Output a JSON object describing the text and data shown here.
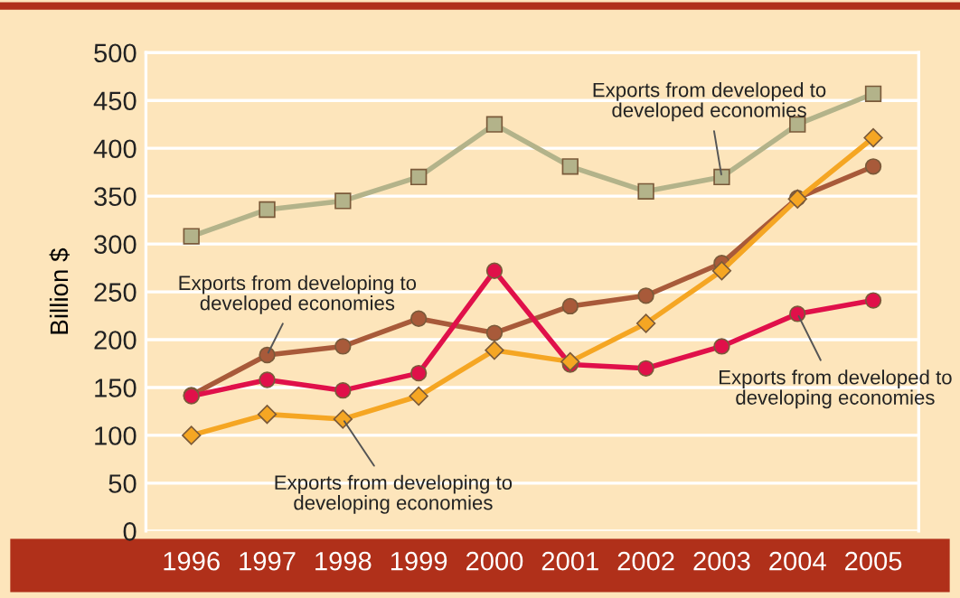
{
  "chart_data": {
    "type": "line",
    "ylabel": "Billion $",
    "categories": [
      "1996",
      "1997",
      "1998",
      "1999",
      "2000",
      "2001",
      "2002",
      "2003",
      "2004",
      "2005"
    ],
    "series": [
      {
        "color": "#b3b38a",
        "marker": "square",
        "values": [
          308,
          336,
          345,
          370,
          425,
          381,
          355,
          370,
          425,
          457
        ]
      },
      {
        "color": "#a85a3a",
        "marker": "circle",
        "values": [
          142,
          184,
          193,
          222,
          207,
          235,
          246,
          280,
          348,
          381
        ]
      },
      {
        "color": "#e0104a",
        "marker": "circle",
        "values": [
          141,
          158,
          147,
          165,
          272,
          174,
          170,
          193,
          227,
          241
        ]
      },
      {
        "color": "#f5a623",
        "marker": "diamond",
        "values": [
          100,
          122,
          117,
          141,
          189,
          177,
          217,
          272,
          347,
          411
        ]
      }
    ],
    "annotations": [
      {
        "text": "Exports from developed to\ndeveloped economies",
        "x": "2003",
        "y": 370
      },
      {
        "text": "Exports from developing to\ndeveloped economies",
        "x": "1997",
        "y": 184
      },
      {
        "text": "Exports from developed to\ndeveloping economies",
        "x": "2004",
        "y": 227
      },
      {
        "text": "Exports from developing to\ndeveloping economies",
        "x": "1998",
        "y": 117
      }
    ],
    "ylim": [
      0,
      500
    ],
    "yticks": [
      0,
      50,
      100,
      150,
      200,
      250,
      300,
      350,
      400,
      450,
      500
    ],
    "grid": "y",
    "legend": false,
    "line_style": "solid"
  }
}
